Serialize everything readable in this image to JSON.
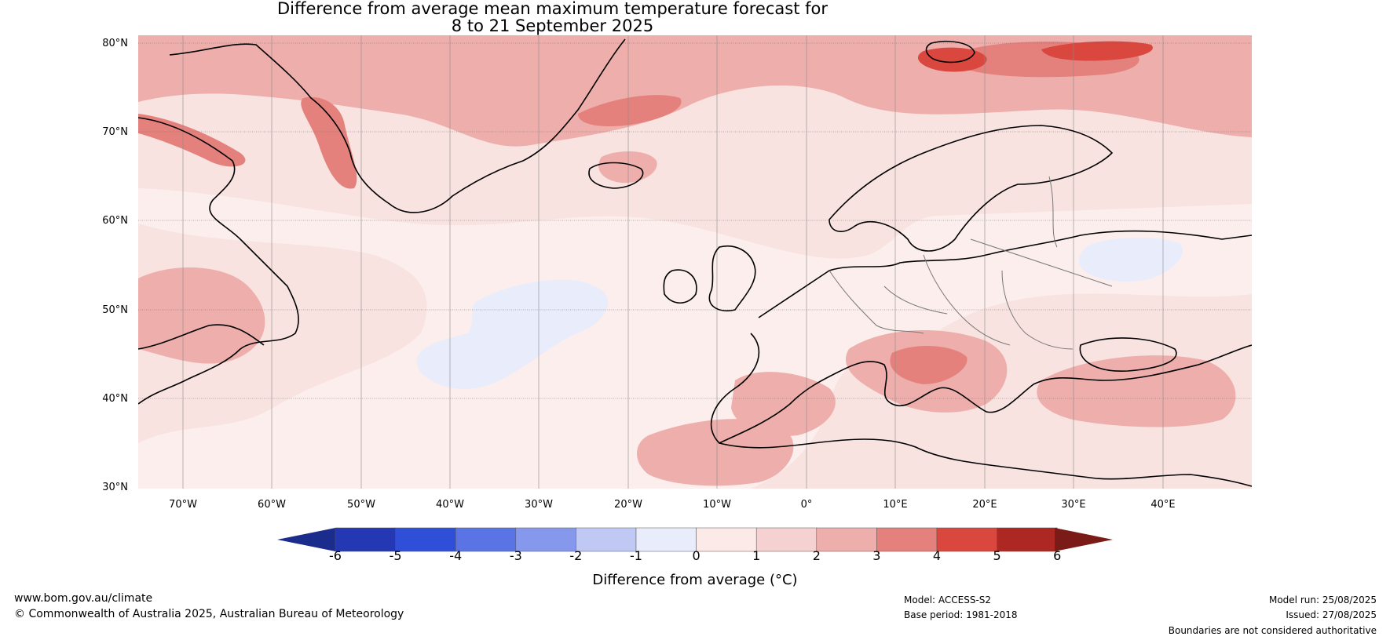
{
  "title_line1": "Difference from average mean maximum temperature forecast for",
  "title_line2": "8 to 21 September 2025",
  "map": {
    "lat_labels": [
      "80°N",
      "70°N",
      "60°N",
      "50°N",
      "40°N",
      "30°N"
    ],
    "lon_labels": [
      "70°W",
      "60°W",
      "50°W",
      "40°W",
      "30°W",
      "20°W",
      "10°W",
      "0°",
      "10°E",
      "20°E",
      "30°E",
      "40°E"
    ]
  },
  "colorbar": {
    "label": "Difference from average (°C)",
    "ticks": [
      "-6",
      "-5",
      "-4",
      "-3",
      "-2",
      "-1",
      "0",
      "1",
      "2",
      "3",
      "4",
      "5",
      "6"
    ],
    "colors": [
      "#1a2d8c",
      "#2438b3",
      "#2f4fd9",
      "#5a74e6",
      "#8698ec",
      "#c0c9f4",
      "#e8ecfb",
      "#fbeae8",
      "#f5d2d1",
      "#eeaeab",
      "#e5817c",
      "#d9473f",
      "#ad2723",
      "#7a1b18"
    ]
  },
  "footer": {
    "website": "www.bom.gov.au/climate",
    "copyright": "© Commonwealth of Australia 2025, Australian Bureau of Meteorology",
    "model": "Model: ACCESS-S2",
    "base_period": "Base period: 1981-2018",
    "model_run": "Model run: 25/08/2025",
    "issued": "Issued: 27/08/2025",
    "disclaimer": "Boundaries are not considered authoritative"
  }
}
